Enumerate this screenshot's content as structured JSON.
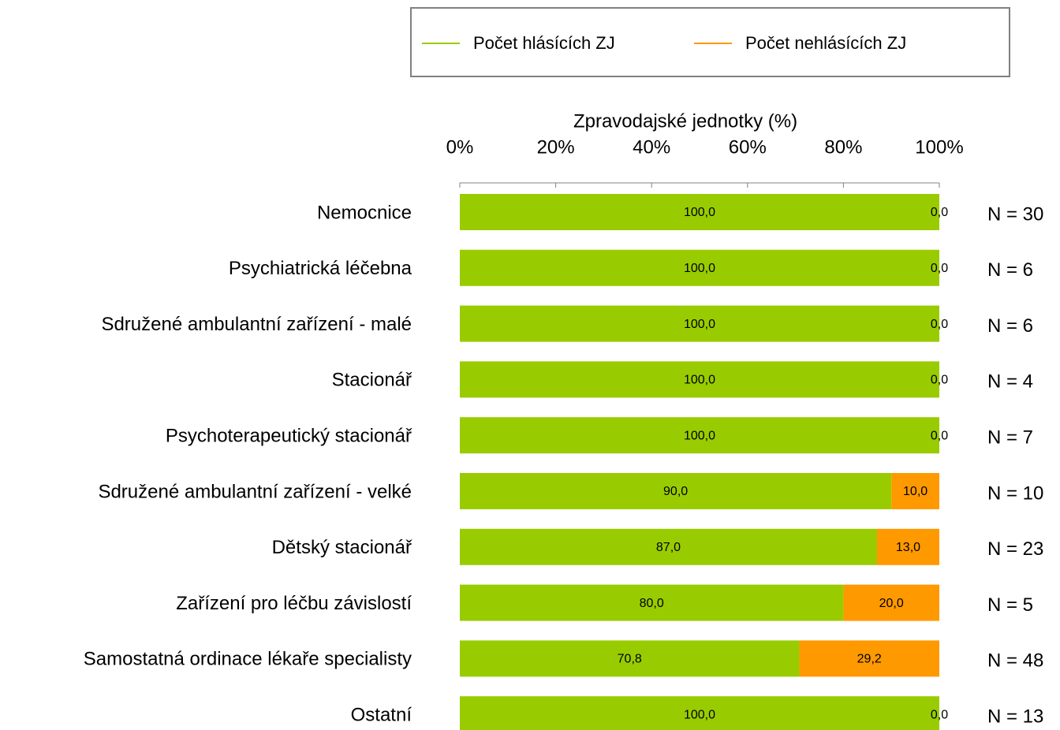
{
  "chart_data": {
    "type": "stacked-bar-horizontal",
    "x_label": "Zpravodajské jednotky (%)",
    "categories": [
      "Nemocnice",
      "Psychiatrická léčebna",
      "Sdružené ambulantní zařízení - malé",
      "Stacionář",
      "Psychoterapeutický stacionář",
      "Sdružené ambulantní zařízení - velké",
      "Dětský stacionář",
      "Zařízení pro léčbu závislostí",
      "Samostatná ordinace lékaře specialisty",
      "Ostatní"
    ],
    "series": [
      {
        "name": "Počet hlásících ZJ",
        "color": "#99cc00",
        "values": [
          100,
          100,
          100,
          100,
          100,
          90,
          87,
          80,
          70.8,
          100
        ],
        "value_labels": [
          "100,0",
          "100,0",
          "100,0",
          "100,0",
          "100,0",
          "90,0",
          "87,0",
          "80,0",
          "70,8",
          "100,0"
        ]
      },
      {
        "name": "Počet nehlásících ZJ",
        "color": "#ff9900",
        "values": [
          0,
          0,
          0,
          0,
          0,
          10,
          13,
          20,
          29.2,
          0
        ],
        "value_labels": [
          "0,0",
          "0,0",
          "0,0",
          "0,0",
          "0,0",
          "10,0",
          "13,0",
          "20,0",
          "29,2",
          "0,0"
        ]
      }
    ],
    "n_labels": [
      "N = 30",
      "N = 6",
      "N = 6",
      "N = 4",
      "N = 7",
      "N = 10",
      "N = 23",
      "N = 5",
      "N = 48",
      "N = 13"
    ],
    "xlim": [
      0,
      100
    ],
    "xticks": [
      {
        "value": 0,
        "label": "0%"
      },
      {
        "value": 20,
        "label": "20%"
      },
      {
        "value": 40,
        "label": "40%"
      },
      {
        "value": 60,
        "label": "60%"
      },
      {
        "value": 80,
        "label": "80%"
      },
      {
        "value": 100,
        "label": "100%"
      }
    ],
    "legend": "top"
  }
}
